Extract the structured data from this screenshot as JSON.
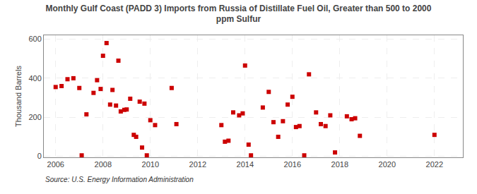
{
  "chart_data": {
    "type": "scatter",
    "title": "Monthly Gulf Coast (PADD 3) Imports from Russia of Distillate Fuel Oil, Greater than 500 to 2000\nppm Sulfur",
    "ylabel": "Thousand Barrels",
    "source": "Source: U.S. Energy Information Administration",
    "color": "#cc0000",
    "marker": "square",
    "grid": true,
    "xlim": [
      2005.5,
      2023.2
    ],
    "ylim": [
      -5,
      620
    ],
    "xticks": [
      2006,
      2008,
      2010,
      2012,
      2014,
      2016,
      2018,
      2020,
      2022
    ],
    "yticks": [
      0,
      200,
      400,
      600
    ],
    "x": [
      2006.0,
      2006.25,
      2006.5,
      2006.75,
      2007.0,
      2007.1,
      2007.3,
      2007.6,
      2007.75,
      2007.9,
      2008.0,
      2008.15,
      2008.3,
      2008.4,
      2008.55,
      2008.65,
      2008.75,
      2008.9,
      2009.0,
      2009.15,
      2009.3,
      2009.4,
      2009.55,
      2009.65,
      2009.75,
      2009.85,
      2010.0,
      2010.2,
      2010.9,
      2011.1,
      2013.0,
      2013.15,
      2013.3,
      2013.5,
      2013.75,
      2013.9,
      2014.0,
      2014.15,
      2014.25,
      2014.75,
      2015.0,
      2015.2,
      2015.4,
      2015.6,
      2015.8,
      2016.0,
      2016.15,
      2016.3,
      2016.5,
      2016.7,
      2017.0,
      2017.2,
      2017.4,
      2017.6,
      2017.8,
      2018.3,
      2018.5,
      2018.65,
      2018.85,
      2022.0
    ],
    "values": [
      355,
      360,
      395,
      400,
      350,
      5,
      215,
      325,
      390,
      345,
      515,
      580,
      265,
      340,
      260,
      490,
      230,
      238,
      240,
      295,
      110,
      100,
      280,
      45,
      270,
      5,
      185,
      160,
      350,
      165,
      160,
      75,
      80,
      225,
      210,
      220,
      465,
      60,
      5,
      250,
      330,
      175,
      100,
      180,
      265,
      305,
      150,
      155,
      5,
      420,
      225,
      165,
      155,
      210,
      20,
      205,
      190,
      195,
      105,
      110
    ]
  }
}
